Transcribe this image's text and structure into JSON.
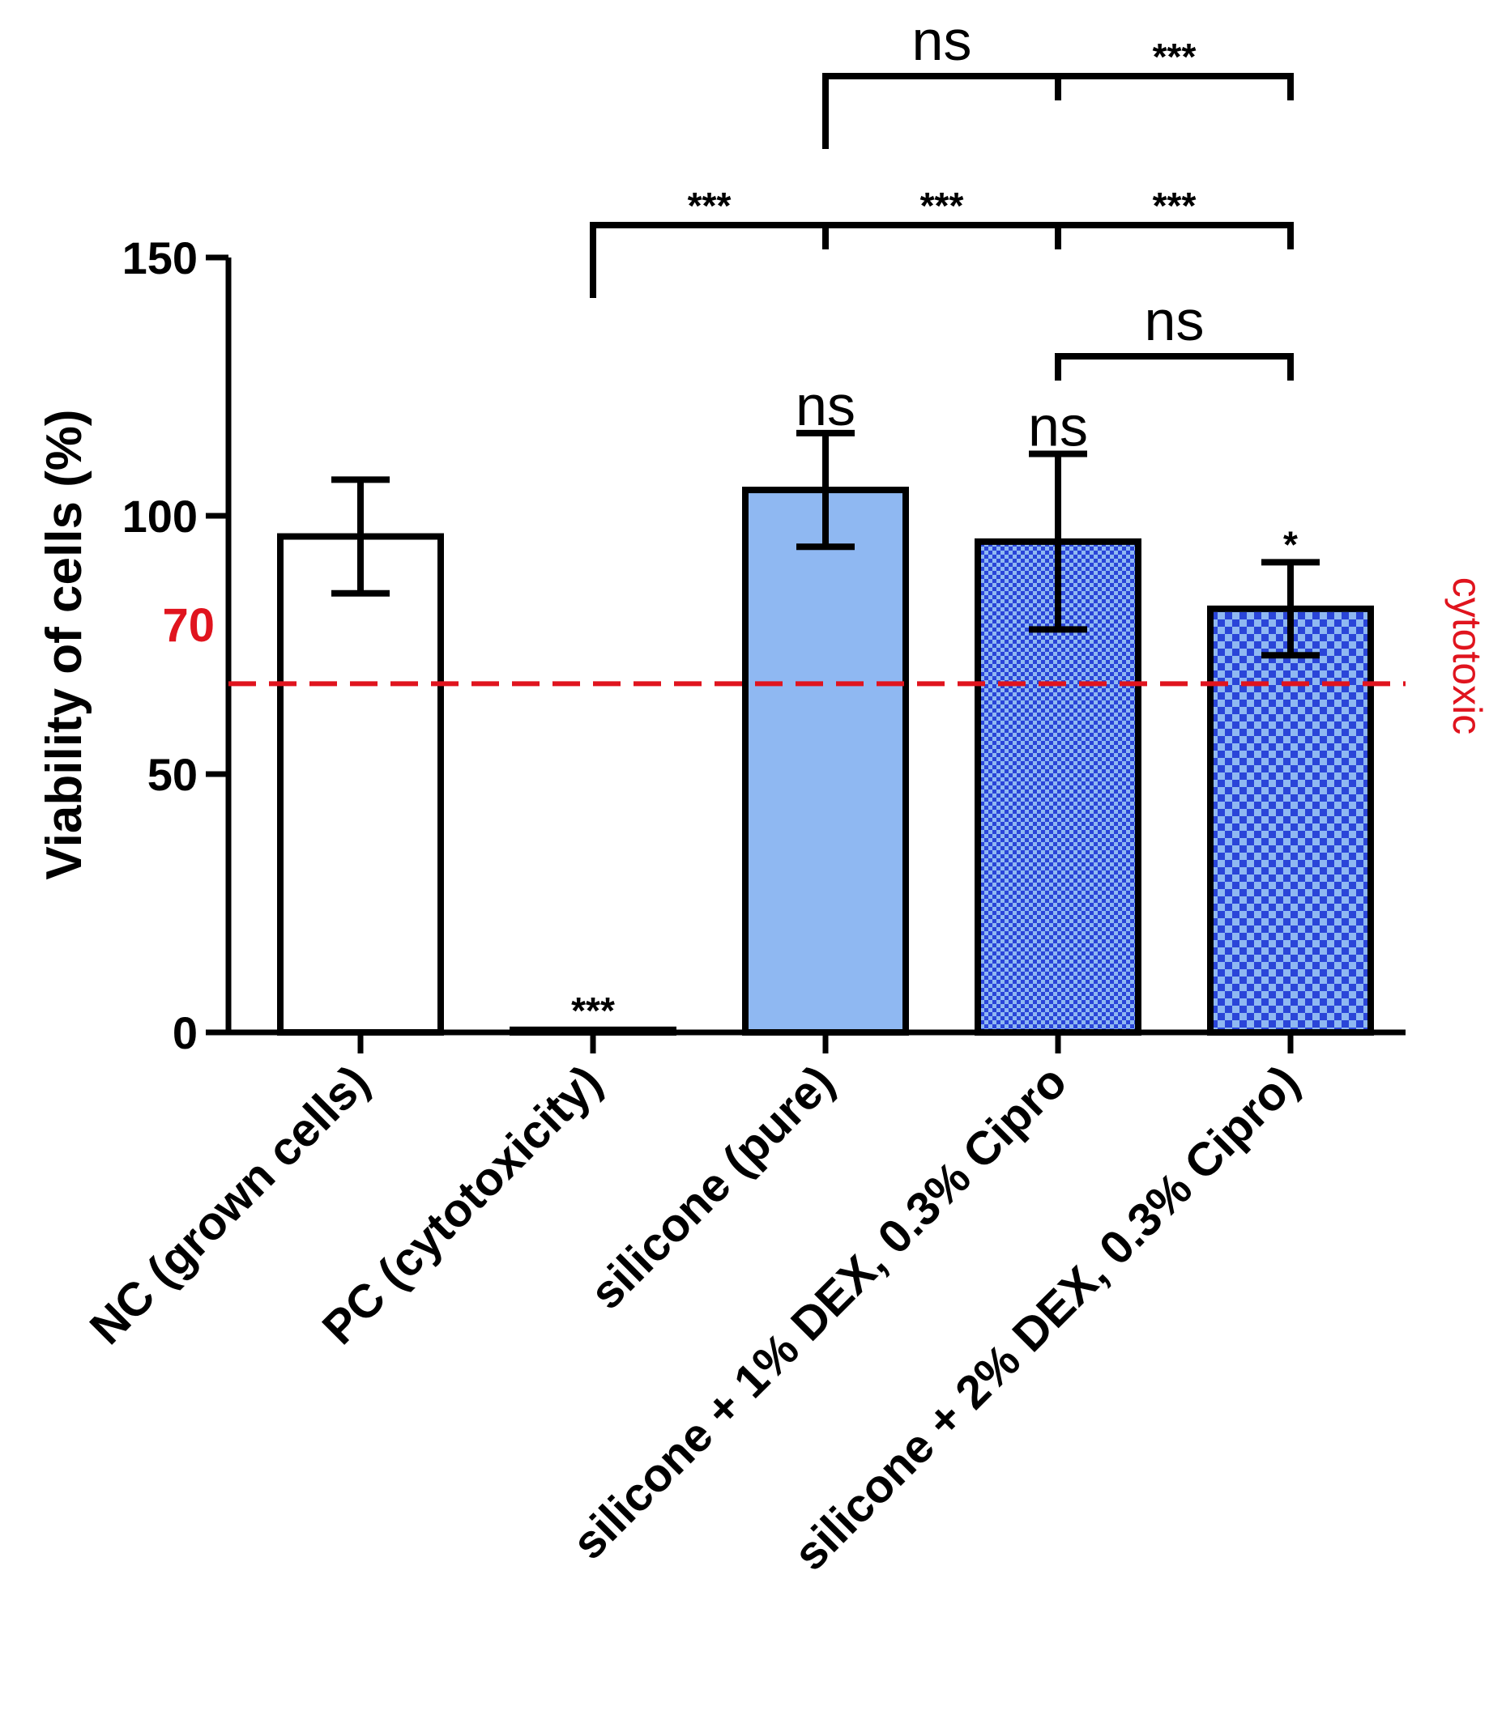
{
  "chart_data": {
    "type": "bar",
    "title": "",
    "xlabel": "",
    "ylabel": "Viability of cells (%)",
    "ylim": [
      0,
      150
    ],
    "yticks": [
      0,
      50,
      100,
      150
    ],
    "categories": [
      "NC (grown cells)",
      "PC (cytotoxicity)",
      "silicone (pure)",
      "silicone + 1% DEX, 0.3% Cipro",
      "silicone + 2% DEX, 0.3% Cipro)"
    ],
    "values": [
      96,
      0.5,
      105,
      95,
      82
    ],
    "errors": [
      11,
      0.3,
      11,
      17,
      9
    ],
    "fill_colors": [
      "#ffffff",
      "#ffffff",
      "#8fb8f2",
      "#2a45d8",
      "#2a45d8"
    ],
    "patterns": [
      "none",
      "none",
      "none",
      "checker-fine",
      "checker-coarse"
    ],
    "bar_labels": [
      "",
      "***",
      "ns",
      "ns",
      "*"
    ],
    "threshold": {
      "value": 70,
      "value_label": "70",
      "label": "cytotoxic",
      "color": "#e0141e"
    },
    "comparisons": [
      {
        "from": 3,
        "to": 4,
        "label": "ns",
        "level": 0
      },
      {
        "from": 1,
        "to": 2,
        "label": "***",
        "level": 1
      },
      {
        "from": 2,
        "to": 3,
        "label": "***",
        "level": 1
      },
      {
        "from": 3,
        "to": 4,
        "label": "***",
        "level": 1
      },
      {
        "from": 2,
        "to": 3,
        "label": "ns",
        "level": 2
      },
      {
        "from": 3,
        "to": 4,
        "label": "***",
        "level": 2
      }
    ],
    "grid": false,
    "legend": "none"
  }
}
